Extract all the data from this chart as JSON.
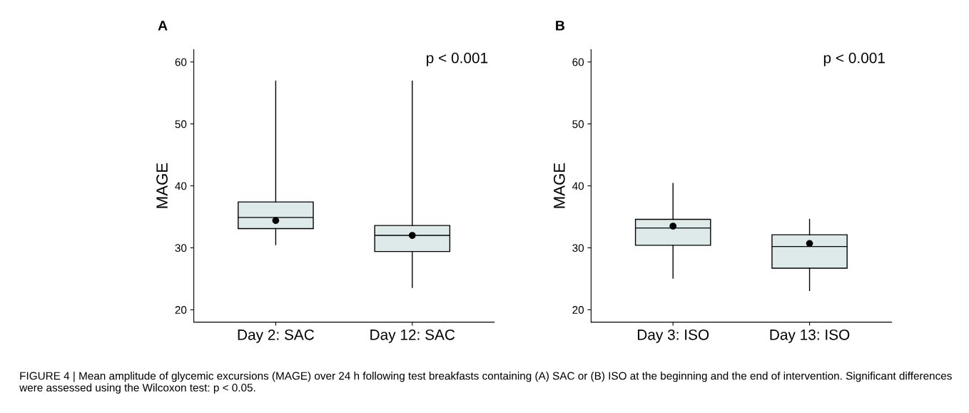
{
  "chart_data": [
    {
      "type": "box",
      "title": "A",
      "ylabel": "MAGE",
      "categories": [
        "Day 2: SAC",
        "Day 12: SAC"
      ],
      "color": "#deeae9",
      "ylim": [
        18,
        62
      ],
      "yticks": [
        20,
        30,
        40,
        50,
        60
      ],
      "grid": false,
      "annotations": [
        "p < 0.001"
      ],
      "boxes": [
        {
          "low": 30.5,
          "q1": 33.1,
          "median": 34.9,
          "q3": 37.4,
          "high": 56.9,
          "mean": 34.4
        },
        {
          "low": 23.6,
          "q1": 29.4,
          "median": 32.0,
          "q3": 33.6,
          "high": 56.9,
          "mean": 32.0
        }
      ]
    },
    {
      "type": "box",
      "title": "B",
      "ylabel": "MAGE",
      "categories": [
        "Day 3: ISO",
        "Day 13: ISO"
      ],
      "color": "#deeae9",
      "ylim": [
        18,
        62
      ],
      "yticks": [
        20,
        30,
        40,
        50,
        60
      ],
      "grid": false,
      "annotations": [
        "p < 0.001",
        "FIGURE 4 | Mean amplitude of glycemic excursions (MAGE) over 24 h following test breakfasts containing (A) SAC or (B) ISO at the beginning and the end of intervention. Significant differences were assessed using the Wilcoxon test: p < 0.05."
      ],
      "boxes": [
        {
          "low": 25.1,
          "q1": 30.4,
          "median": 33.2,
          "q3": 34.6,
          "high": 40.4,
          "mean": 33.5
        },
        {
          "low": 23.1,
          "q1": 26.7,
          "median": 30.2,
          "q3": 32.1,
          "high": 34.6,
          "mean": 30.7
        }
      ]
    }
  ]
}
